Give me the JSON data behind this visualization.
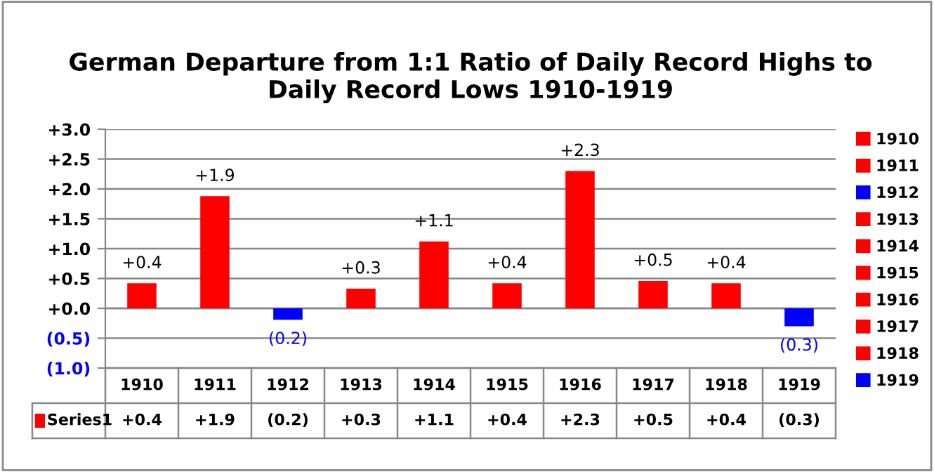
{
  "chart_data": {
    "type": "bar",
    "title": "German Departure from 1:1 Ratio of Daily Record Highs to\nDaily Record Lows 1910-1919",
    "categories": [
      "1910",
      "1911",
      "1912",
      "1913",
      "1914",
      "1915",
      "1916",
      "1917",
      "1918",
      "1919"
    ],
    "series": [
      {
        "name": "Series1",
        "colors": [
          "#ff0000",
          "#ff0000",
          "#0000ff",
          "#ff0000",
          "#ff0000",
          "#ff0000",
          "#ff0000",
          "#ff0000",
          "#ff0000",
          "#0000ff"
        ],
        "values": [
          0.42,
          1.88,
          -0.19,
          0.33,
          1.12,
          0.42,
          2.3,
          0.46,
          0.42,
          -0.3
        ],
        "value_labels": [
          "+0.4",
          "+1.9",
          "(0.2)",
          "+0.3",
          "+1.1",
          "+0.4",
          "+2.3",
          "+0.5",
          "+0.4",
          "(0.3)"
        ]
      }
    ],
    "ylim": [
      -1.0,
      3.0
    ],
    "yticks": [
      {
        "value": -1.0,
        "label": "(1.0)"
      },
      {
        "value": -0.5,
        "label": "(0.5)"
      },
      {
        "value": 0.0,
        "label": "+0.0"
      },
      {
        "value": 0.5,
        "label": "+0.5"
      },
      {
        "value": 1.0,
        "label": "+1.0"
      },
      {
        "value": 1.5,
        "label": "+1.5"
      },
      {
        "value": 2.0,
        "label": "+2.0"
      },
      {
        "value": 2.5,
        "label": "+2.5"
      },
      {
        "value": 3.0,
        "label": "+3.0"
      }
    ],
    "grid": "y",
    "legend": "bottom left"
  }
}
